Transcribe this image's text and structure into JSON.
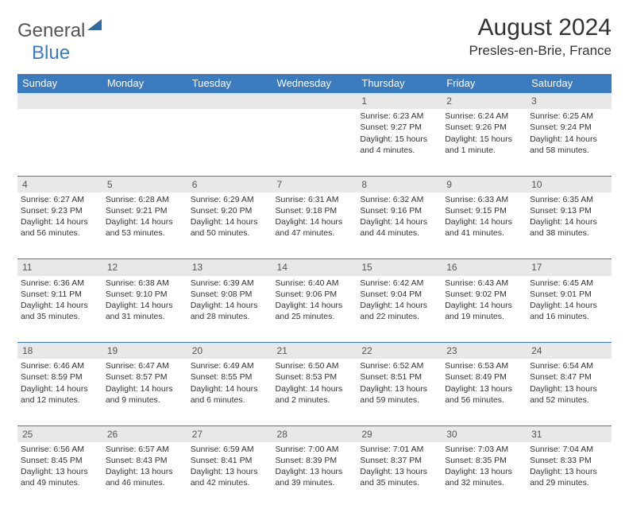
{
  "logo": {
    "text1": "General",
    "text2": "Blue"
  },
  "title": "August 2024",
  "location": "Presles-en-Brie, France",
  "colors": {
    "header_bg": "#3b7bbf",
    "header_text": "#ffffff",
    "daynum_bg": "#e8e8e8",
    "border": "#3b7bbf",
    "body_text": "#333333"
  },
  "dayHeaders": [
    "Sunday",
    "Monday",
    "Tuesday",
    "Wednesday",
    "Thursday",
    "Friday",
    "Saturday"
  ],
  "weeks": [
    [
      null,
      null,
      null,
      null,
      {
        "n": "1",
        "sunrise": "6:23 AM",
        "sunset": "9:27 PM",
        "daylight": "15 hours and 4 minutes."
      },
      {
        "n": "2",
        "sunrise": "6:24 AM",
        "sunset": "9:26 PM",
        "daylight": "15 hours and 1 minute."
      },
      {
        "n": "3",
        "sunrise": "6:25 AM",
        "sunset": "9:24 PM",
        "daylight": "14 hours and 58 minutes."
      }
    ],
    [
      {
        "n": "4",
        "sunrise": "6:27 AM",
        "sunset": "9:23 PM",
        "daylight": "14 hours and 56 minutes."
      },
      {
        "n": "5",
        "sunrise": "6:28 AM",
        "sunset": "9:21 PM",
        "daylight": "14 hours and 53 minutes."
      },
      {
        "n": "6",
        "sunrise": "6:29 AM",
        "sunset": "9:20 PM",
        "daylight": "14 hours and 50 minutes."
      },
      {
        "n": "7",
        "sunrise": "6:31 AM",
        "sunset": "9:18 PM",
        "daylight": "14 hours and 47 minutes."
      },
      {
        "n": "8",
        "sunrise": "6:32 AM",
        "sunset": "9:16 PM",
        "daylight": "14 hours and 44 minutes."
      },
      {
        "n": "9",
        "sunrise": "6:33 AM",
        "sunset": "9:15 PM",
        "daylight": "14 hours and 41 minutes."
      },
      {
        "n": "10",
        "sunrise": "6:35 AM",
        "sunset": "9:13 PM",
        "daylight": "14 hours and 38 minutes."
      }
    ],
    [
      {
        "n": "11",
        "sunrise": "6:36 AM",
        "sunset": "9:11 PM",
        "daylight": "14 hours and 35 minutes."
      },
      {
        "n": "12",
        "sunrise": "6:38 AM",
        "sunset": "9:10 PM",
        "daylight": "14 hours and 31 minutes."
      },
      {
        "n": "13",
        "sunrise": "6:39 AM",
        "sunset": "9:08 PM",
        "daylight": "14 hours and 28 minutes."
      },
      {
        "n": "14",
        "sunrise": "6:40 AM",
        "sunset": "9:06 PM",
        "daylight": "14 hours and 25 minutes."
      },
      {
        "n": "15",
        "sunrise": "6:42 AM",
        "sunset": "9:04 PM",
        "daylight": "14 hours and 22 minutes."
      },
      {
        "n": "16",
        "sunrise": "6:43 AM",
        "sunset": "9:02 PM",
        "daylight": "14 hours and 19 minutes."
      },
      {
        "n": "17",
        "sunrise": "6:45 AM",
        "sunset": "9:01 PM",
        "daylight": "14 hours and 16 minutes."
      }
    ],
    [
      {
        "n": "18",
        "sunrise": "6:46 AM",
        "sunset": "8:59 PM",
        "daylight": "14 hours and 12 minutes."
      },
      {
        "n": "19",
        "sunrise": "6:47 AM",
        "sunset": "8:57 PM",
        "daylight": "14 hours and 9 minutes."
      },
      {
        "n": "20",
        "sunrise": "6:49 AM",
        "sunset": "8:55 PM",
        "daylight": "14 hours and 6 minutes."
      },
      {
        "n": "21",
        "sunrise": "6:50 AM",
        "sunset": "8:53 PM",
        "daylight": "14 hours and 2 minutes."
      },
      {
        "n": "22",
        "sunrise": "6:52 AM",
        "sunset": "8:51 PM",
        "daylight": "13 hours and 59 minutes."
      },
      {
        "n": "23",
        "sunrise": "6:53 AM",
        "sunset": "8:49 PM",
        "daylight": "13 hours and 56 minutes."
      },
      {
        "n": "24",
        "sunrise": "6:54 AM",
        "sunset": "8:47 PM",
        "daylight": "13 hours and 52 minutes."
      }
    ],
    [
      {
        "n": "25",
        "sunrise": "6:56 AM",
        "sunset": "8:45 PM",
        "daylight": "13 hours and 49 minutes."
      },
      {
        "n": "26",
        "sunrise": "6:57 AM",
        "sunset": "8:43 PM",
        "daylight": "13 hours and 46 minutes."
      },
      {
        "n": "27",
        "sunrise": "6:59 AM",
        "sunset": "8:41 PM",
        "daylight": "13 hours and 42 minutes."
      },
      {
        "n": "28",
        "sunrise": "7:00 AM",
        "sunset": "8:39 PM",
        "daylight": "13 hours and 39 minutes."
      },
      {
        "n": "29",
        "sunrise": "7:01 AM",
        "sunset": "8:37 PM",
        "daylight": "13 hours and 35 minutes."
      },
      {
        "n": "30",
        "sunrise": "7:03 AM",
        "sunset": "8:35 PM",
        "daylight": "13 hours and 32 minutes."
      },
      {
        "n": "31",
        "sunrise": "7:04 AM",
        "sunset": "8:33 PM",
        "daylight": "13 hours and 29 minutes."
      }
    ]
  ]
}
